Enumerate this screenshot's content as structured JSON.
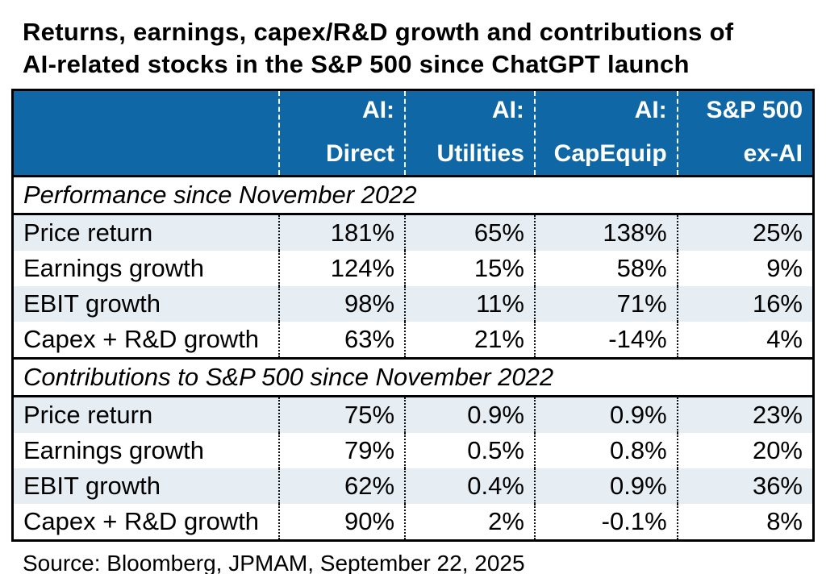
{
  "title": {
    "line1": "Returns, earnings, capex/R&D growth and contributions of",
    "line2": "AI-related stocks in the S&P 500 since ChatGPT launch"
  },
  "colors": {
    "header_bg": "#0F67A5",
    "row_alt_bg": "#E6EEF4",
    "border_color": "#000000"
  },
  "table": {
    "columns": [
      {
        "line1": "",
        "line2": ""
      },
      {
        "line1": "AI:",
        "line2": "Direct"
      },
      {
        "line1": "AI:",
        "line2": "Utilities"
      },
      {
        "line1": "AI:",
        "line2": "CapEquip"
      },
      {
        "line1": "S&P 500",
        "line2": "ex-AI"
      }
    ],
    "sections": [
      {
        "heading": "Performance since November 2022",
        "rows": [
          {
            "label": "Price return",
            "values": [
              "181%",
              "65%",
              "138%",
              "25%"
            ]
          },
          {
            "label": "Earnings growth",
            "values": [
              "124%",
              "15%",
              "58%",
              "9%"
            ]
          },
          {
            "label": "EBIT growth",
            "values": [
              "98%",
              "11%",
              "71%",
              "16%"
            ]
          },
          {
            "label": "Capex + R&D growth",
            "values": [
              "63%",
              "21%",
              "-14%",
              "4%"
            ]
          }
        ]
      },
      {
        "heading": "Contributions to S&P 500 since November 2022",
        "rows": [
          {
            "label": "Price return",
            "values": [
              "75%",
              "0.9%",
              "0.9%",
              "23%"
            ]
          },
          {
            "label": "Earnings growth",
            "values": [
              "79%",
              "0.5%",
              "0.8%",
              "20%"
            ]
          },
          {
            "label": "EBIT growth",
            "values": [
              "62%",
              "0.4%",
              "0.9%",
              "36%"
            ]
          },
          {
            "label": "Capex + R&D growth",
            "values": [
              "90%",
              "2%",
              "-0.1%",
              "8%"
            ]
          }
        ]
      }
    ]
  },
  "source": "Source: Bloomberg, JPMAM, September 22, 2025",
  "chart_data": {
    "type": "table",
    "title": "Returns, earnings, capex/R&D growth and contributions of AI-related stocks in the S&P 500 since ChatGPT launch",
    "columns": [
      "",
      "AI: Direct",
      "AI: Utilities",
      "AI: CapEquip",
      "S&P 500 ex-AI"
    ],
    "sections": [
      {
        "heading": "Performance since November 2022",
        "rows": [
          [
            "Price return",
            "181%",
            "65%",
            "138%",
            "25%"
          ],
          [
            "Earnings growth",
            "124%",
            "15%",
            "58%",
            "9%"
          ],
          [
            "EBIT growth",
            "98%",
            "11%",
            "71%",
            "16%"
          ],
          [
            "Capex + R&D growth",
            "63%",
            "21%",
            "-14%",
            "4%"
          ]
        ]
      },
      {
        "heading": "Contributions to S&P 500 since November 2022",
        "rows": [
          [
            "Price return",
            "75%",
            "0.9%",
            "0.9%",
            "23%"
          ],
          [
            "Earnings growth",
            "79%",
            "0.5%",
            "0.8%",
            "20%"
          ],
          [
            "EBIT growth",
            "62%",
            "0.4%",
            "0.9%",
            "36%"
          ],
          [
            "Capex + R&D growth",
            "90%",
            "2%",
            "-0.1%",
            "8%"
          ]
        ]
      }
    ],
    "source": "Source: Bloomberg, JPMAM, September 22, 2025"
  }
}
